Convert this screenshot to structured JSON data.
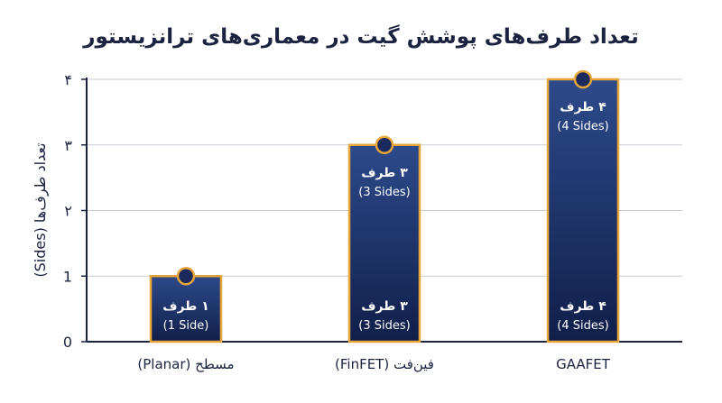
{
  "chart_data": {
    "type": "bar",
    "title": "تعداد طرف‌های پوشش گیت در معماری‌های ترانزیستور",
    "xlabel": "",
    "ylabel": "تعداد طرف‌ها (Sides)",
    "categories": [
      "مسطح (Planar)",
      "فین‌فت (FinFET)",
      "GAAFET"
    ],
    "values": [
      1,
      3,
      4
    ],
    "ylim": [
      0,
      4
    ],
    "yticks": [
      0,
      1,
      2,
      3,
      4
    ],
    "ytick_labels": [
      "0",
      "1",
      "۲",
      "۳",
      "۴"
    ],
    "top_labels": [
      {
        "main": "۱ طرف",
        "sub": "(1 Side)"
      },
      {
        "main": "۳ طرف",
        "sub": "(3 Sides)"
      },
      {
        "main": "۴ طرف",
        "sub": "(4 Sides)"
      }
    ],
    "bottom_labels": [
      null,
      {
        "main": "۳ طرف",
        "sub": "(3 Sides)"
      },
      {
        "main": "۴ طرف",
        "sub": "(4 Sides)"
      }
    ],
    "grid": true,
    "colors": {
      "bar_top": "#2d4a8a",
      "bar_bottom": "#101f4a",
      "bar_border": "#e8a53a",
      "marker_fill": "#1a2a5c",
      "marker_border": "#e8a53a",
      "axis": "#1b2340",
      "grid": "#c9ccd4"
    }
  }
}
